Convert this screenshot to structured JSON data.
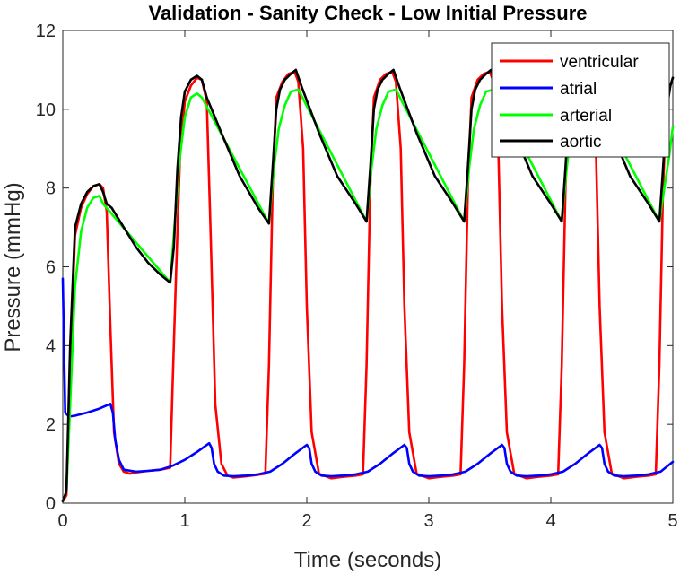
{
  "chart_data": {
    "type": "line",
    "title": "Validation - Sanity Check - Low Initial Pressure",
    "xlabel": "Time (seconds)",
    "ylabel": "Pressure (mmHg)",
    "xlim": [
      0,
      5
    ],
    "ylim": [
      0,
      12
    ],
    "x_ticks": [
      "0",
      "1",
      "2",
      "3",
      "4",
      "5"
    ],
    "y_ticks": [
      "0",
      "2",
      "4",
      "6",
      "8",
      "10",
      "12"
    ],
    "grid": false,
    "legend_position": "top-right",
    "series": [
      {
        "name": "ventricular",
        "color": "#ff0000",
        "x": [
          0.0,
          0.03,
          0.06,
          0.1,
          0.15,
          0.2,
          0.25,
          0.3,
          0.33,
          0.36,
          0.39,
          0.42,
          0.46,
          0.5,
          0.55,
          0.6,
          0.7,
          0.8,
          0.88,
          0.9,
          0.93,
          0.96,
          1.0,
          1.05,
          1.1,
          1.14,
          1.18,
          1.21,
          1.25,
          1.3,
          1.35,
          1.4,
          1.5,
          1.6,
          1.66,
          1.69,
          1.72,
          1.75,
          1.8,
          1.85,
          1.9,
          1.93,
          1.97,
          2.0,
          2.04,
          2.1,
          2.2,
          2.3,
          2.4,
          2.46,
          2.49,
          2.52,
          2.55,
          2.6,
          2.65,
          2.7,
          2.73,
          2.77,
          2.8,
          2.84,
          2.9,
          3.0,
          3.1,
          3.2,
          3.26,
          3.29,
          3.32,
          3.35,
          3.4,
          3.45,
          3.5,
          3.53,
          3.57,
          3.6,
          3.64,
          3.7,
          3.8,
          3.9,
          4.0,
          4.06,
          4.09,
          4.12,
          4.15,
          4.2,
          4.25,
          4.3,
          4.33,
          4.37,
          4.4,
          4.44,
          4.5,
          4.6,
          4.7,
          4.8,
          4.86,
          4.89,
          4.92,
          4.95,
          5.0
        ],
        "values": [
          0.05,
          0.2,
          3.5,
          6.8,
          7.5,
          7.85,
          8.05,
          8.1,
          8.0,
          7.4,
          4.5,
          1.8,
          1.0,
          0.8,
          0.75,
          0.78,
          0.82,
          0.85,
          0.9,
          3.0,
          6.0,
          8.8,
          10.2,
          10.6,
          10.8,
          10.75,
          10.2,
          7.0,
          2.5,
          1.0,
          0.7,
          0.65,
          0.68,
          0.72,
          0.75,
          3.5,
          8.0,
          10.3,
          10.7,
          10.9,
          10.95,
          10.7,
          9.0,
          5.0,
          1.8,
          0.75,
          0.63,
          0.67,
          0.7,
          0.73,
          3.5,
          8.0,
          10.3,
          10.75,
          10.9,
          10.95,
          10.7,
          9.0,
          5.0,
          1.8,
          0.75,
          0.63,
          0.67,
          0.7,
          0.73,
          3.5,
          8.0,
          10.3,
          10.75,
          10.9,
          10.95,
          10.7,
          9.0,
          5.0,
          1.8,
          0.75,
          0.63,
          0.67,
          0.7,
          0.73,
          3.5,
          8.0,
          10.3,
          10.75,
          10.9,
          10.95,
          10.7,
          9.0,
          5.0,
          1.8,
          0.75,
          0.63,
          0.67,
          0.7,
          0.73,
          3.5,
          8.0,
          10.3,
          10.8
        ]
      },
      {
        "name": "atrial",
        "color": "#0000ff",
        "x": [
          0.0,
          0.02,
          0.05,
          0.1,
          0.2,
          0.3,
          0.39,
          0.41,
          0.43,
          0.46,
          0.5,
          0.6,
          0.7,
          0.8,
          0.9,
          1.0,
          1.1,
          1.2,
          1.22,
          1.24,
          1.27,
          1.32,
          1.4,
          1.5,
          1.6,
          1.7,
          1.8,
          1.9,
          2.0,
          2.02,
          2.04,
          2.07,
          2.12,
          2.2,
          2.3,
          2.4,
          2.5,
          2.6,
          2.7,
          2.8,
          2.82,
          2.84,
          2.87,
          2.92,
          3.0,
          3.1,
          3.2,
          3.3,
          3.4,
          3.5,
          3.6,
          3.62,
          3.64,
          3.67,
          3.72,
          3.8,
          3.9,
          4.0,
          4.1,
          4.2,
          4.3,
          4.4,
          4.42,
          4.44,
          4.47,
          4.52,
          4.6,
          4.7,
          4.8,
          4.9,
          5.0
        ],
        "values": [
          5.7,
          2.3,
          2.2,
          2.22,
          2.3,
          2.4,
          2.52,
          2.3,
          1.6,
          1.1,
          0.85,
          0.8,
          0.82,
          0.85,
          0.95,
          1.1,
          1.3,
          1.52,
          1.4,
          1.0,
          0.8,
          0.7,
          0.68,
          0.7,
          0.73,
          0.8,
          1.0,
          1.25,
          1.48,
          1.4,
          1.0,
          0.8,
          0.7,
          0.68,
          0.7,
          0.73,
          0.8,
          1.0,
          1.25,
          1.48,
          1.4,
          1.0,
          0.8,
          0.7,
          0.68,
          0.7,
          0.73,
          0.8,
          1.0,
          1.25,
          1.48,
          1.4,
          1.0,
          0.8,
          0.7,
          0.68,
          0.7,
          0.73,
          0.8,
          1.0,
          1.25,
          1.48,
          1.4,
          1.0,
          0.8,
          0.7,
          0.68,
          0.7,
          0.73,
          0.8,
          1.05
        ]
      },
      {
        "name": "arterial",
        "color": "#00ff00",
        "x": [
          0.0,
          0.03,
          0.06,
          0.1,
          0.15,
          0.2,
          0.25,
          0.3,
          0.33,
          0.88,
          0.92,
          0.96,
          1.0,
          1.05,
          1.1,
          1.14,
          1.69,
          1.73,
          1.77,
          1.82,
          1.87,
          1.93,
          2.49,
          2.53,
          2.57,
          2.62,
          2.67,
          2.73,
          3.29,
          3.33,
          3.37,
          3.42,
          3.47,
          3.53,
          4.09,
          4.13,
          4.17,
          4.22,
          4.27,
          4.33,
          4.89,
          4.93,
          4.97,
          5.0
        ],
        "values": [
          0.05,
          0.3,
          2.5,
          5.5,
          6.9,
          7.5,
          7.75,
          7.8,
          7.6,
          5.6,
          7.2,
          8.8,
          9.8,
          10.3,
          10.4,
          10.3,
          7.1,
          8.5,
          9.5,
          10.1,
          10.45,
          10.5,
          7.15,
          8.5,
          9.5,
          10.1,
          10.45,
          10.5,
          7.15,
          8.5,
          9.5,
          10.1,
          10.45,
          10.5,
          7.15,
          8.5,
          9.5,
          10.1,
          10.45,
          10.5,
          7.15,
          8.0,
          8.8,
          9.55
        ]
      },
      {
        "name": "aortic",
        "color": "#000000",
        "x": [
          0.0,
          0.03,
          0.06,
          0.1,
          0.15,
          0.2,
          0.25,
          0.3,
          0.33,
          0.36,
          0.4,
          0.5,
          0.6,
          0.7,
          0.8,
          0.88,
          0.91,
          0.94,
          0.97,
          1.0,
          1.05,
          1.1,
          1.14,
          1.18,
          1.3,
          1.45,
          1.6,
          1.69,
          1.72,
          1.75,
          1.78,
          1.82,
          1.87,
          1.91,
          1.96,
          2.1,
          2.25,
          2.4,
          2.49,
          2.52,
          2.55,
          2.58,
          2.62,
          2.67,
          2.71,
          2.76,
          2.9,
          3.05,
          3.2,
          3.29,
          3.32,
          3.35,
          3.38,
          3.42,
          3.47,
          3.51,
          3.56,
          3.7,
          3.85,
          4.0,
          4.09,
          4.12,
          4.15,
          4.18,
          4.22,
          4.27,
          4.31,
          4.36,
          4.5,
          4.65,
          4.8,
          4.89,
          4.92,
          4.95,
          4.98,
          5.0
        ],
        "values": [
          0.05,
          0.3,
          4.0,
          7.0,
          7.6,
          7.9,
          8.05,
          8.1,
          7.9,
          7.6,
          7.5,
          7.0,
          6.5,
          6.1,
          5.8,
          5.6,
          6.5,
          8.5,
          9.8,
          10.45,
          10.75,
          10.85,
          10.75,
          10.3,
          9.4,
          8.3,
          7.5,
          7.1,
          8.5,
          10.0,
          10.5,
          10.75,
          10.9,
          11.0,
          10.55,
          9.4,
          8.3,
          7.6,
          7.15,
          8.5,
          10.0,
          10.5,
          10.75,
          10.9,
          11.0,
          10.55,
          9.4,
          8.3,
          7.6,
          7.15,
          8.5,
          10.0,
          10.5,
          10.75,
          10.9,
          11.0,
          10.55,
          9.4,
          8.3,
          7.6,
          7.15,
          8.5,
          10.0,
          10.5,
          10.75,
          10.9,
          11.0,
          10.55,
          9.4,
          8.3,
          7.6,
          7.15,
          8.5,
          10.0,
          10.6,
          10.8
        ]
      }
    ]
  }
}
